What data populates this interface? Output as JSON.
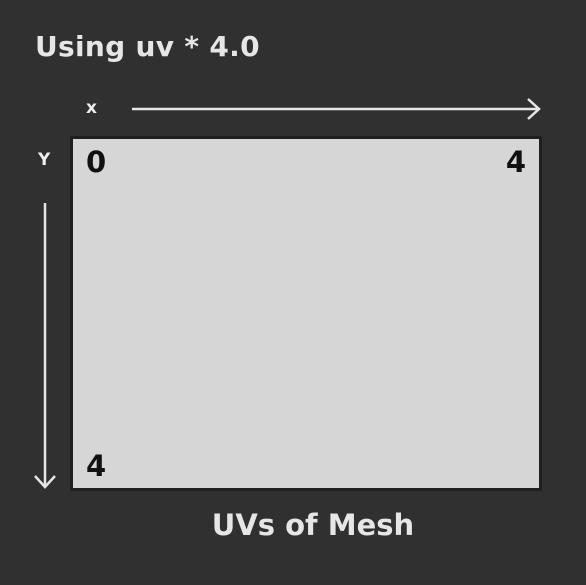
{
  "title": "Using uv * 4.0",
  "axes": {
    "x_label": "x",
    "y_label": "Y"
  },
  "plane": {
    "origin_label": "0",
    "x_max_label": "4",
    "y_max_label": "4"
  },
  "caption": "UVs of Mesh",
  "colors": {
    "background": "#303030",
    "plane_fill": "#d6d6d6",
    "plane_border": "#1f1f1f",
    "text_light": "#e6e6e6",
    "text_dark": "#111111"
  }
}
